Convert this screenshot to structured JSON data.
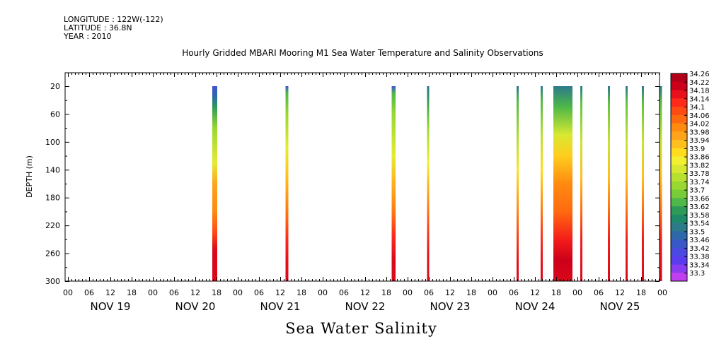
{
  "header": {
    "longitude": "LONGITUDE : 122W(-122)",
    "latitude": "LATITUDE : 36.8N",
    "year": "YEAR : 2010",
    "title": "Hourly Gridded MBARI Mooring M1 Sea Water Temperature and Salinity Observations"
  },
  "footer_title": "Sea Water Salinity",
  "chart_data": {
    "type": "heatmap",
    "title": "Hourly Gridded MBARI Mooring M1 Sea Water Temperature and Salinity Observations",
    "variable": "Sea Water Salinity",
    "xlabel": "",
    "ylabel": "DEPTH (m)",
    "x_range_hours": [
      0,
      168
    ],
    "y_range": [
      300,
      0
    ],
    "y_ticks": [
      20,
      60,
      100,
      140,
      180,
      220,
      260,
      300
    ],
    "y_tick_labels": [
      "20",
      "60",
      "100",
      "140",
      "180",
      "220",
      "260",
      "300"
    ],
    "x_hour_labels": [
      "00",
      "06",
      "12",
      "18",
      "00",
      "06",
      "12",
      "18",
      "00",
      "06",
      "12",
      "18",
      "00",
      "06",
      "12",
      "18",
      "00",
      "06",
      "12",
      "18",
      "00",
      "06",
      "12",
      "18",
      "00",
      "06",
      "12",
      "18",
      "00"
    ],
    "x_day_labels": [
      "NOV 19",
      "NOV 20",
      "NOV 21",
      "NOV 22",
      "NOV 23",
      "NOV 24",
      "NOV 25"
    ],
    "colorbar_labels": [
      "34.26",
      "34.22",
      "34.18",
      "34.14",
      "34.1",
      "34.06",
      "34.02",
      "33.98",
      "33.94",
      "33.9",
      "33.86",
      "33.82",
      "33.78",
      "33.74",
      "33.7",
      "33.66",
      "33.62",
      "33.58",
      "33.54",
      "33.5",
      "33.46",
      "33.42",
      "33.38",
      "33.34",
      "33.3"
    ],
    "colorbar_colors": [
      "#b3001a",
      "#cc001a",
      "#e8101a",
      "#ff2a1a",
      "#ff4a14",
      "#ff6a10",
      "#ff8a10",
      "#ffa41a",
      "#ffbf1e",
      "#ffdd1e",
      "#f2f030",
      "#d8e832",
      "#b8e030",
      "#98d830",
      "#78cc38",
      "#4eb848",
      "#2e9a58",
      "#1e8a6a",
      "#2c7a8a",
      "#2e68a8",
      "#3858c8",
      "#4a4ae0",
      "#5a3cee",
      "#8a3cf0",
      "#c040f0"
    ],
    "observation_columns": [
      {
        "day": "NOV 20",
        "start_hour": 40.8,
        "end_hour": 42.2,
        "profile": [
          [
            20,
            33.44
          ],
          [
            35,
            33.5
          ],
          [
            50,
            33.62
          ],
          [
            80,
            33.74
          ],
          [
            130,
            33.84
          ],
          [
            160,
            33.98
          ],
          [
            200,
            34.02
          ],
          [
            230,
            34.1
          ],
          [
            255,
            34.2
          ],
          [
            300,
            34.2
          ]
        ]
      },
      {
        "day": "NOV 21",
        "start_hour": 61.5,
        "end_hour": 62.3,
        "profile": [
          [
            20,
            33.44
          ],
          [
            30,
            33.66
          ],
          [
            60,
            33.74
          ],
          [
            110,
            33.84
          ],
          [
            150,
            33.94
          ],
          [
            200,
            34.04
          ],
          [
            240,
            34.14
          ],
          [
            270,
            34.18
          ],
          [
            300,
            34.2
          ]
        ]
      },
      {
        "day": "NOV 22",
        "start_hour": 91.5,
        "end_hour": 92.6,
        "profile": [
          [
            20,
            33.44
          ],
          [
            30,
            33.66
          ],
          [
            60,
            33.74
          ],
          [
            120,
            33.84
          ],
          [
            160,
            33.96
          ],
          [
            200,
            34.04
          ],
          [
            235,
            34.14
          ],
          [
            270,
            34.2
          ],
          [
            300,
            34.2
          ]
        ]
      },
      {
        "day": "NOV 23",
        "start_hour": 101.5,
        "end_hour": 101.9,
        "profile": [
          [
            20,
            33.52
          ],
          [
            40,
            33.62
          ],
          [
            80,
            33.74
          ],
          [
            130,
            33.86
          ],
          [
            180,
            34.0
          ],
          [
            220,
            34.1
          ],
          [
            260,
            34.18
          ],
          [
            300,
            34.2
          ]
        ]
      },
      {
        "day": "NOV 24",
        "start_hour": 126.8,
        "end_hour": 127.3,
        "profile": [
          [
            20,
            33.52
          ],
          [
            40,
            33.66
          ],
          [
            90,
            33.76
          ],
          [
            140,
            33.88
          ],
          [
            190,
            34.0
          ],
          [
            230,
            34.1
          ],
          [
            270,
            34.18
          ],
          [
            300,
            34.2
          ]
        ]
      },
      {
        "day": "NOV 24",
        "start_hour": 133.6,
        "end_hour": 134.1,
        "profile": [
          [
            20,
            33.54
          ],
          [
            40,
            33.66
          ],
          [
            90,
            33.78
          ],
          [
            140,
            33.9
          ],
          [
            190,
            34.02
          ],
          [
            230,
            34.12
          ],
          [
            270,
            34.18
          ],
          [
            300,
            34.2
          ]
        ]
      },
      {
        "day": "NOV 24",
        "start_hour": 137.2,
        "end_hour": 142.6,
        "profile": [
          [
            20,
            33.54
          ],
          [
            50,
            33.66
          ],
          [
            90,
            33.82
          ],
          [
            120,
            33.92
          ],
          [
            160,
            34.02
          ],
          [
            200,
            34.06
          ],
          [
            240,
            34.16
          ],
          [
            270,
            34.22
          ],
          [
            300,
            34.2
          ]
        ]
      },
      {
        "day": "NOV 25",
        "start_hour": 144.8,
        "end_hour": 145.3,
        "profile": [
          [
            20,
            33.54
          ],
          [
            45,
            33.68
          ],
          [
            100,
            33.8
          ],
          [
            150,
            33.94
          ],
          [
            200,
            34.06
          ],
          [
            240,
            34.16
          ],
          [
            300,
            34.2
          ]
        ]
      },
      {
        "day": "NOV 25",
        "start_hour": 152.6,
        "end_hour": 153.1,
        "profile": [
          [
            20,
            33.54
          ],
          [
            45,
            33.68
          ],
          [
            100,
            33.8
          ],
          [
            150,
            33.94
          ],
          [
            200,
            34.06
          ],
          [
            240,
            34.16
          ],
          [
            300,
            34.2
          ]
        ]
      },
      {
        "day": "NOV 25",
        "start_hour": 157.6,
        "end_hour": 158.1,
        "profile": [
          [
            20,
            33.54
          ],
          [
            45,
            33.68
          ],
          [
            100,
            33.8
          ],
          [
            150,
            33.94
          ],
          [
            200,
            34.06
          ],
          [
            240,
            34.16
          ],
          [
            300,
            34.2
          ]
        ]
      },
      {
        "day": "NOV 25",
        "start_hour": 162.2,
        "end_hour": 162.7,
        "profile": [
          [
            20,
            33.54
          ],
          [
            45,
            33.68
          ],
          [
            100,
            33.8
          ],
          [
            150,
            33.94
          ],
          [
            200,
            34.06
          ],
          [
            240,
            34.16
          ],
          [
            300,
            34.2
          ]
        ]
      },
      {
        "day": "NOV 25",
        "start_hour": 167.3,
        "end_hour": 167.8,
        "profile": [
          [
            20,
            33.54
          ],
          [
            45,
            33.68
          ],
          [
            100,
            33.8
          ],
          [
            150,
            33.94
          ],
          [
            200,
            34.06
          ],
          [
            240,
            34.16
          ],
          [
            300,
            34.2
          ]
        ]
      }
    ]
  }
}
